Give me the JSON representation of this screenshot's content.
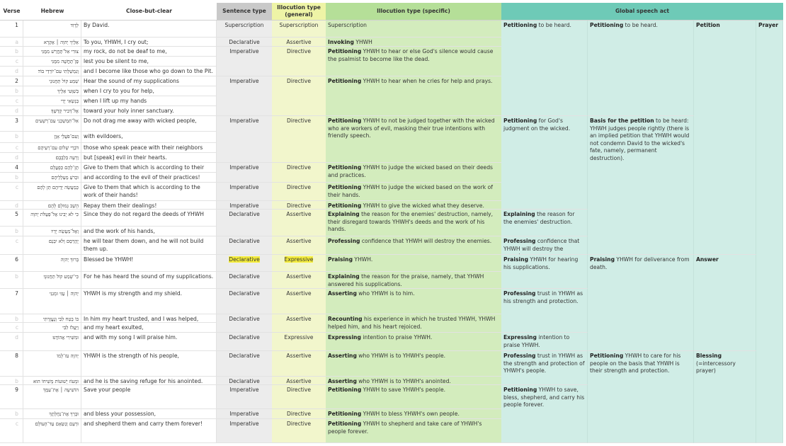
{
  "headers": {
    "verse": "Verse",
    "hebrew": "Hebrew",
    "close_but_clear": "Close-but-clear",
    "sentence_type": "Sentence type",
    "illocution_general": "Illocution type (general)",
    "illocution_specific": "Illocution type (specific)",
    "global_speech_act": "Global speech act"
  },
  "colors": {
    "sentence_header": "#c9c9c9",
    "sentence_body": "#ececec",
    "general_header": "#eef4a6",
    "general_body": "#f2f6cc",
    "specific_header": "#b5df98",
    "specific_body": "#d3ecbd",
    "global_header": "#6ecab7",
    "global_body": "#d0ede6",
    "highlight": "#f6ee3c"
  },
  "lines": [
    {
      "verse": "1",
      "hebrew": "לְדָוִד",
      "english": "By David."
    },
    {
      "verse": "a",
      "hebrew": "אֵלֶיךָ יְהוָה ׀ אֶקְרָא",
      "english": "To you, YHWH, I cry out;"
    },
    {
      "verse": "b",
      "hebrew": "צוּרִי אַל־תֶּחֱרַשׁ מִמֶּנִּי",
      "english": "my rock, do not be deaf to me,"
    },
    {
      "verse": "c",
      "hebrew": "פֶּן־תֶּחֱשֶׁה מִמֶּנִּי",
      "english": "lest you be silent to me,"
    },
    {
      "verse": "d",
      "hebrew": "וְנִמְשַׁלְתִּי עִם־יוֹרְדֵי בוֹר׃",
      "english": "and I become like those who go down to the Pit."
    },
    {
      "verse": "2",
      "hebrew": "שְׁמַע קוֹל תַּחֲנוּנַי",
      "english": "Hear the sound of my supplications"
    },
    {
      "verse": "b",
      "hebrew": "בְּשַׁוְּעִי אֵלֶיךָ",
      "english": "when I cry to you for help,"
    },
    {
      "verse": "c",
      "hebrew": "בְּנָשְׂאִי יָדַי",
      "english": "when I lift up my hands"
    },
    {
      "verse": "d",
      "hebrew": "אֶל־דְּבִיר קָדְשֶׁךָ׃",
      "english": "toward your holy inner sanctuary."
    },
    {
      "verse": "3",
      "hebrew": "אַל־תִּמְשְׁכֵנִי עִם־רְשָׁעִים",
      "english": "Do not drag me away with wicked people,"
    },
    {
      "verse": "b",
      "hebrew": "וְעִם־פֹּעֲלֵי אָוֶן",
      "english": "with evildoers,"
    },
    {
      "verse": "c",
      "hebrew": "דֹּבְרֵי שָׁלוֹם עִם־רֵעֵיהֶם",
      "english": "those who speak peace with their neighbors"
    },
    {
      "verse": "d",
      "hebrew": "וְרָעָה בִּלְבָבָם׃",
      "english": "but [speak] evil in their hearts."
    },
    {
      "verse": "4",
      "hebrew": "תֶּן־לָהֶם כְּפָעֳלָם",
      "english": "Give to them that which is according to their deeds"
    },
    {
      "verse": "b",
      "hebrew": "וּכְרֹעַ מַעַלְלֵיהֶם",
      "english": "and according to the evil of their practices!"
    },
    {
      "verse": "c",
      "hebrew": "כְּמַעֲשֵׂה יְדֵיהֶם תֵּן לָהֶם",
      "english": "Give to them that which is according to the work of their hands!"
    },
    {
      "verse": "d",
      "hebrew": "הָשֵׁב גְּמוּלָם לָהֶם׃",
      "english": "Repay them their dealings!"
    },
    {
      "verse": "5",
      "hebrew": "כִּי לֹא יָבִינוּ אֶל־פְּעֻלֹּת יְהוָה",
      "english": "Since they do not regard the deeds of YHWH"
    },
    {
      "verse": "b",
      "hebrew": "וְאֶל־מַעֲשֵׂה יָדָיו",
      "english": "and the work of his hands,"
    },
    {
      "verse": "c",
      "hebrew": "יֶהֶרְסֵם וְלֹא יִבְנֵם׃",
      "english": "he will tear them down, and he will not build them up."
    },
    {
      "verse": "6",
      "hebrew": "בָּרוּךְ יְהוָה",
      "english": "Blessed be YHWH!"
    },
    {
      "verse": "b",
      "hebrew": "כִּי־שָׁמַע קוֹל תַּחֲנוּנָי׃",
      "english": "For he has heard the sound of my supplications."
    },
    {
      "verse": "7",
      "hebrew": "יְהוָה ׀ עֻזִּי וּמָגִנִּי",
      "english": "YHWH is my strength and my shield."
    },
    {
      "verse": "b",
      "hebrew": "בּוֹ בָטַח לִבִּי וְנֶעֱזָרְתִּי",
      "english": "In him my heart trusted, and I was helped,"
    },
    {
      "verse": "c",
      "hebrew": "וַיַּעֲלֹז לִבִּי",
      "english": "and my heart exulted,"
    },
    {
      "verse": "d",
      "hebrew": "וּמִשִּׁירִי אֲהוֹדֶנּוּ׃",
      "english": "and with my song I will praise him."
    },
    {
      "verse": "8",
      "hebrew": "יְהוָה עֹז־לָמוֹ",
      "english": "YHWH is the strength of his people,"
    },
    {
      "verse": "b",
      "hebrew": "וּמָעוֹז יְשׁוּעוֹת מְשִׁיחוֹ הוּא׃",
      "english": "and he is the saving refuge for his anointed."
    },
    {
      "verse": "9",
      "hebrew": "הוֹשִׁיעָה ׀ אֶת־עַמֶּךָ",
      "english": "Save your people"
    },
    {
      "verse": "b",
      "hebrew": "וּבָרֵךְ אֶת־נַחֲלָתֶךָ",
      "english": "and bless your possession,"
    },
    {
      "verse": "c",
      "hebrew": "וּרְעֵם וְנַשְּׂאֵם עַד־הָעוֹלָם׃",
      "english": "and shepherd them and carry them forever!"
    }
  ],
  "clauses": [
    {
      "sentence": "Superscription",
      "general": "Superscription",
      "specific": {
        "b": "",
        "t": "Superscription"
      }
    },
    {
      "sentence": "Declarative",
      "general": "Assertive",
      "specific": {
        "b": "Invoking",
        "t": " YHWH"
      }
    },
    {
      "sentence": "Imperative",
      "general": "Directive",
      "specific": {
        "b": "Petitioning",
        "t": " YHWH to hear or else God's silence would cause the psalmist to become like the dead."
      }
    },
    {
      "sentence": "Imperative",
      "general": "Directive",
      "specific": {
        "b": "Petitioning",
        "t": " YHWH to hear when he cries for help and prays."
      }
    },
    {
      "sentence": "Imperative",
      "general": "Directive",
      "specific": {
        "b": "Petitioning",
        "t": " YHWH to not be judged together with the wicked who are workers of evil, masking their true intentions with friendly speech."
      }
    },
    {
      "sentence": "Imperative",
      "general": "Directive",
      "specific": {
        "b": "Petitioning",
        "t": " YHWH to judge the wicked based on their deeds and practices."
      }
    },
    {
      "sentence": "Imperative",
      "general": "Directive",
      "specific": {
        "b": "Petitioning",
        "t": " YHWH to judge the wicked based on the work of their hands."
      }
    },
    {
      "sentence": "Imperative",
      "general": "Directive",
      "specific": {
        "b": "Petitioning",
        "t": " YHWH to give the wicked what they deserve."
      }
    },
    {
      "sentence": "Declarative",
      "general": "Assertive",
      "specific": {
        "b": "Explaining",
        "t": " the reason for the enemies' destruction, namely, their disregard towards YHWH's deeds and the work of his hands."
      }
    },
    {
      "sentence": "Declarative",
      "general": "Assertive",
      "specific": {
        "b": "Professing",
        "t": " confidence that YHWH will destroy the enemies."
      }
    },
    {
      "sentence": "Declarative",
      "general": "Expressive",
      "highlighted": true,
      "specific": {
        "b": "Praising",
        "t": " YHWH."
      }
    },
    {
      "sentence": "Declarative",
      "general": "Assertive",
      "specific": {
        "b": "Explaining",
        "t": " the reason for the praise, namely, that YHWH answered his supplications."
      }
    },
    {
      "sentence": "Declarative",
      "general": "Assertive",
      "specific": {
        "b": "Asserting",
        "t": " who YHWH is to him."
      }
    },
    {
      "sentence": "Declarative",
      "general": "Assertive",
      "specific": {
        "b": "Recounting",
        "t": " his experience in which he trusted YHWH, YHWH helped him, and his heart rejoiced."
      }
    },
    {
      "sentence": "Declarative",
      "general": "Expressive",
      "specific": {
        "b": "Expressing",
        "t": " intention to praise YHWH."
      }
    },
    {
      "sentence": "Declarative",
      "general": "Assertive",
      "specific": {
        "b": "Asserting",
        "t": " who YHWH is to YHWH's people."
      }
    },
    {
      "sentence": "Declarative",
      "general": "Assertive",
      "specific": {
        "b": "Asserting",
        "t": " who YHWH is to YHWH's anointed."
      }
    },
    {
      "sentence": "Imperative",
      "general": "Directive",
      "specific": {
        "b": "Petitioning",
        "t": " YHWH to save YHWH's people."
      }
    },
    {
      "sentence": "Imperative",
      "general": "Directive",
      "specific": {
        "b": "Petitioning",
        "t": " YHWH to bless YHWH's own people."
      }
    },
    {
      "sentence": "Imperative",
      "general": "Directive",
      "specific": {
        "b": "Petitioning",
        "t": " YHWH to shepherd and take care of YHWH's people forever."
      }
    }
  ],
  "global": {
    "level1": [
      {
        "b": "Petitioning",
        "t": " to be heard."
      },
      {
        "b": "Petitioning",
        "t": " for God's judgment on the wicked."
      },
      {
        "b": "Explaining",
        "t": " the reason for the enemies' destruction."
      },
      {
        "b": "Professing",
        "t": " confidence that YHWH will destroy the enemies."
      },
      {
        "b": "Praising",
        "t": " YHWH for hearing his supplications."
      },
      {
        "b": "Professing",
        "t": " trust in YHWH as his strength and protection."
      },
      {
        "b": "Expressing",
        "t": " intention to praise YHWH."
      },
      {
        "b": "Professing",
        "t": " trust in YHWH as the strength and protection of YHWH's people."
      },
      {
        "b": "Petitioning",
        "t": " YHWH to save, bless, shepherd, and carry his people forever."
      }
    ],
    "level2": [
      {
        "b": "Petitioning",
        "t": " to be heard."
      },
      {
        "b": "Basis for the petition",
        "t": " to be heard: YHWH judges people rightly (there is an implied petition that YHWH would not condemn David to the wicked's fate, namely, permanent destruction)."
      },
      {
        "b": "Praising",
        "t": " YHWH for deliverance from death."
      },
      {
        "b": "Petitioning",
        "t": " YHWH to care for his people on the basis that YHWH is their strength and protection."
      }
    ],
    "level3": [
      {
        "b": "Petition",
        "t": ""
      },
      {
        "b": "Answer",
        "t": ""
      },
      {
        "b": "Blessing",
        "t": " (=intercessory prayer)"
      }
    ],
    "level4": [
      {
        "b": "Prayer",
        "t": ""
      }
    ]
  }
}
